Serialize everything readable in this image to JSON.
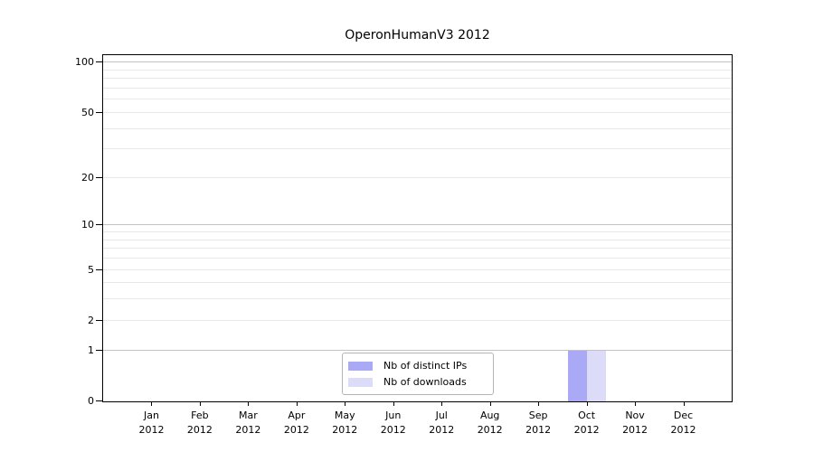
{
  "title": "OperonHumanV3 2012",
  "chart_data": {
    "type": "bar",
    "title": "OperonHumanV3 2012",
    "x_categories": [
      "Jan",
      "Feb",
      "Mar",
      "Apr",
      "May",
      "Jun",
      "Jul",
      "Aug",
      "Sep",
      "Oct",
      "Nov",
      "Dec"
    ],
    "x_year": "2012",
    "series": [
      {
        "name": "Nb of distinct IPs",
        "color": "#a9a9f5",
        "values": [
          0,
          0,
          0,
          0,
          0,
          0,
          0,
          0,
          0,
          1,
          0,
          0
        ]
      },
      {
        "name": "Nb of downloads",
        "color": "#dcdcf8",
        "values": [
          0,
          0,
          0,
          0,
          0,
          0,
          0,
          0,
          0,
          1,
          0,
          0
        ]
      }
    ],
    "yscale": "log1p",
    "ylim": [
      0,
      111
    ],
    "yticks": [
      0,
      1,
      2,
      5,
      10,
      20,
      50,
      100
    ],
    "gridlines": {
      "major": [
        1,
        10,
        100
      ],
      "minor": [
        2,
        3,
        4,
        5,
        6,
        7,
        8,
        9,
        20,
        30,
        40,
        50,
        60,
        70,
        80,
        90
      ]
    },
    "grid": true,
    "legend_position": "bottom-center"
  },
  "colors": {
    "bar_distinct_ips": "#a9a9f5",
    "bar_downloads": "#dcdcf8",
    "grid_major": "#c3c3c3",
    "grid_minor": "#e8e8e8",
    "axis": "#000000",
    "background": "#ffffff"
  }
}
